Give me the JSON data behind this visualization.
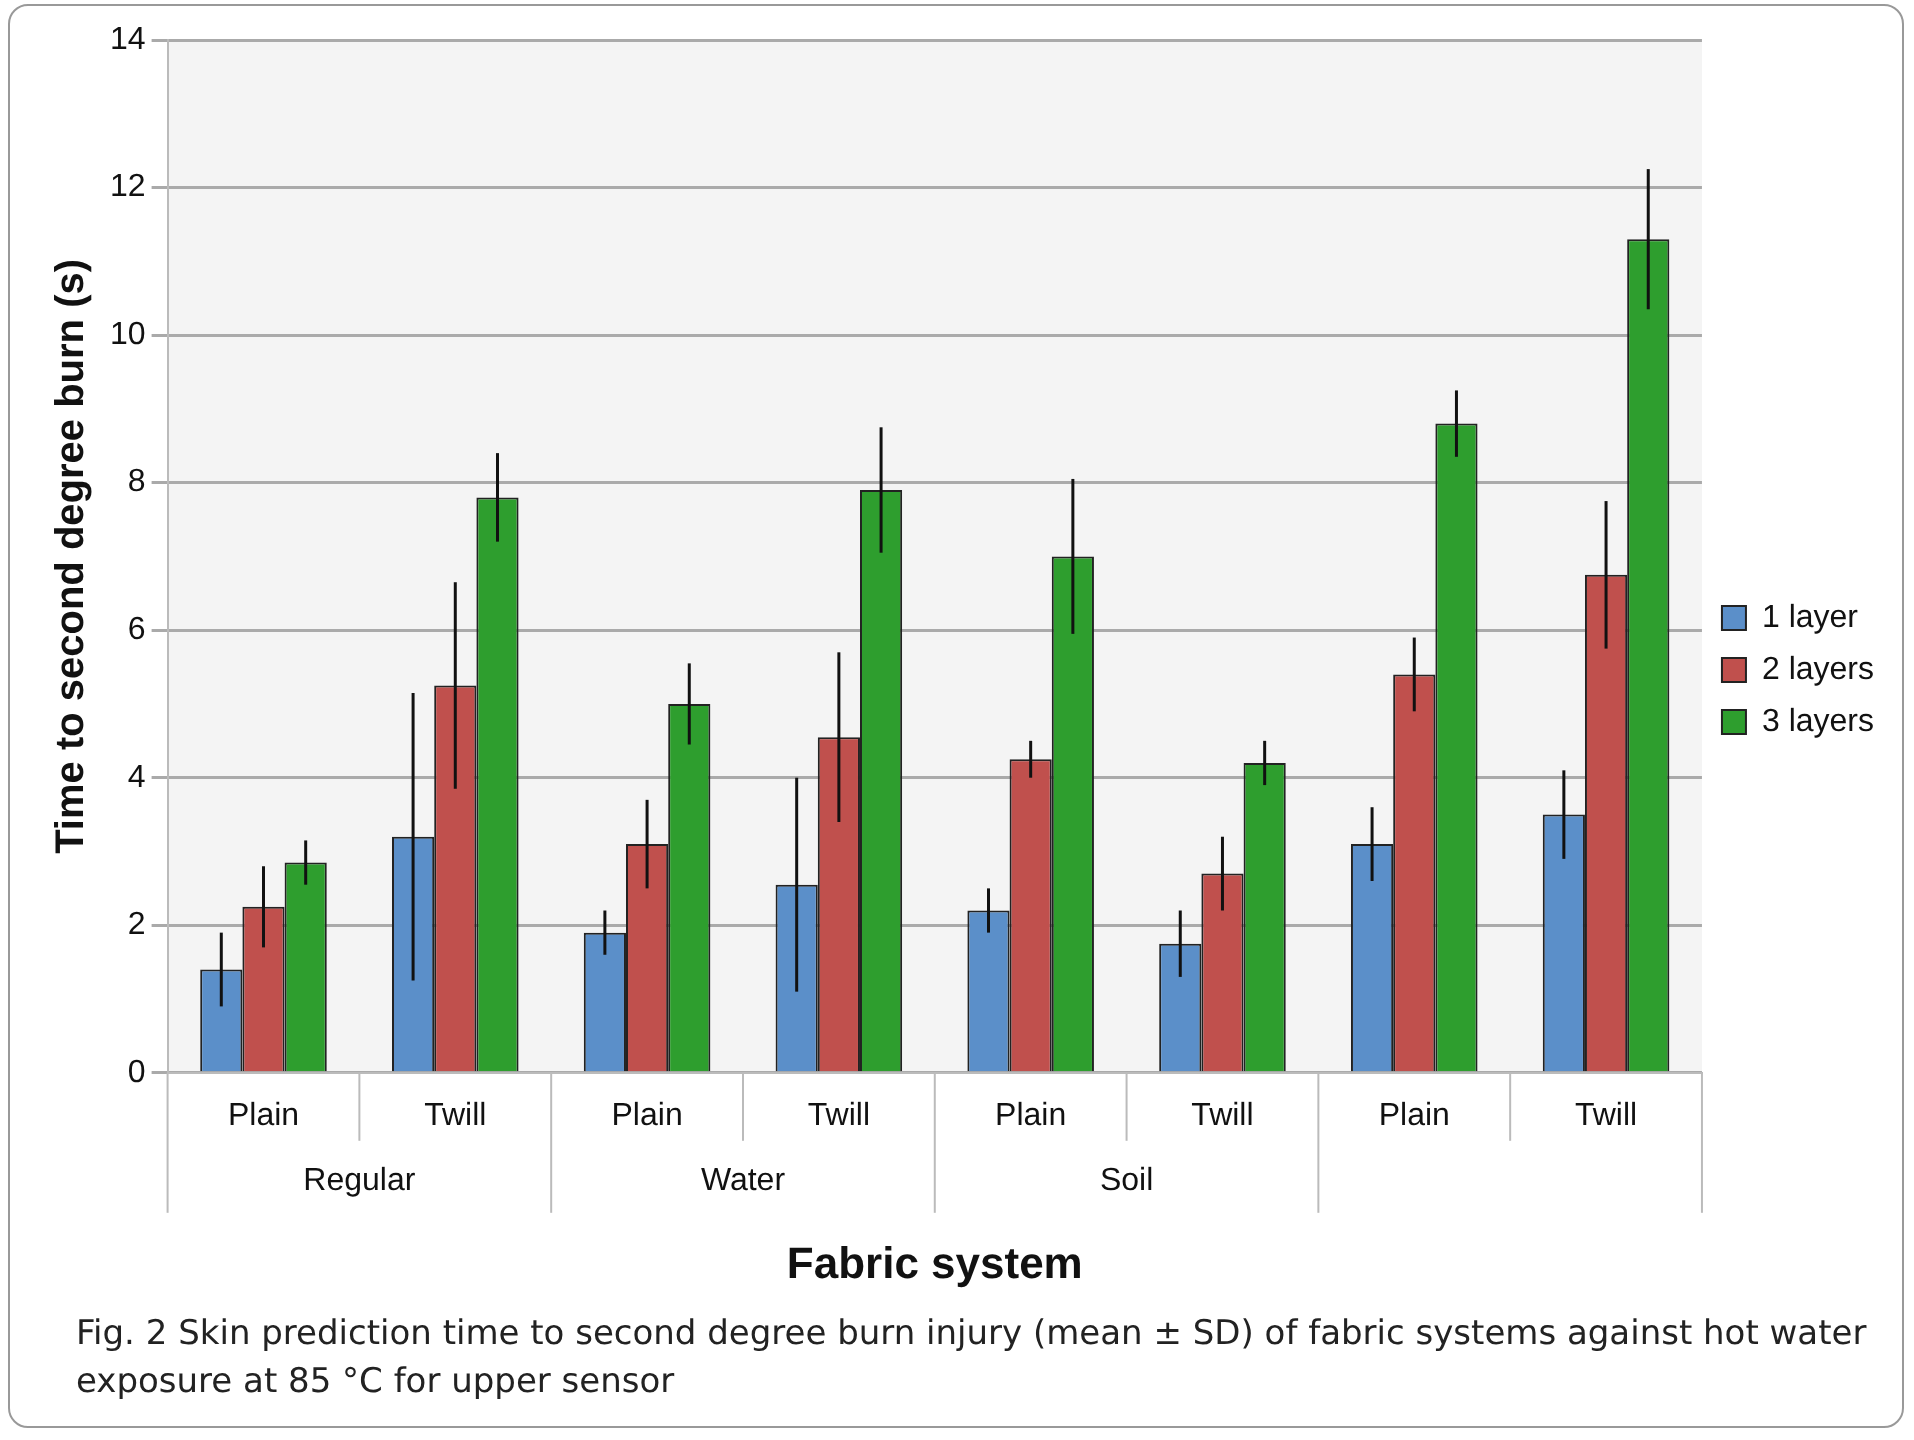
{
  "chart_data": {
    "type": "bar",
    "xlabel": "Fabric system",
    "ylabel": "Time to second degree burn (s)",
    "categories": [
      "Plain",
      "Twill",
      "Plain",
      "Twill",
      "Plain",
      "Twill",
      "Plain",
      "Twill"
    ],
    "series": [
      {
        "name": "1 layer",
        "color": "#5b8fc9",
        "values": [
          1.4,
          3.2,
          1.9,
          2.55,
          2.2,
          1.75,
          3.1,
          3.5
        ],
        "errors": [
          0.5,
          1.95,
          0.3,
          1.45,
          0.3,
          0.45,
          0.5,
          0.6
        ]
      },
      {
        "name": "2 layers",
        "color": "#c0504d",
        "values": [
          2.25,
          5.25,
          3.1,
          4.55,
          4.25,
          2.7,
          5.4,
          6.75
        ],
        "errors": [
          0.55,
          1.4,
          0.6,
          1.15,
          0.25,
          0.5,
          0.5,
          1.0
        ]
      },
      {
        "name": "3 layers",
        "color": "#2e9e2e",
        "values": [
          2.85,
          7.8,
          5.0,
          7.9,
          7.0,
          4.2,
          8.8,
          11.3
        ],
        "errors": [
          0.3,
          0.6,
          0.55,
          0.85,
          1.05,
          0.3,
          0.45,
          0.95
        ]
      }
    ],
    "ylim": [
      0,
      14
    ],
    "yticks": [
      0,
      2,
      4,
      6,
      8,
      10,
      12,
      14
    ],
    "grid": "y",
    "legend": "right",
    "annotations": [
      "Fig. 2  Skin prediction time to second degree burn injury (mean ± SD) of fabric systems against hot water exposure at 85 °C for upper sensor",
      "Regular",
      "Water",
      "Soil"
    ]
  }
}
